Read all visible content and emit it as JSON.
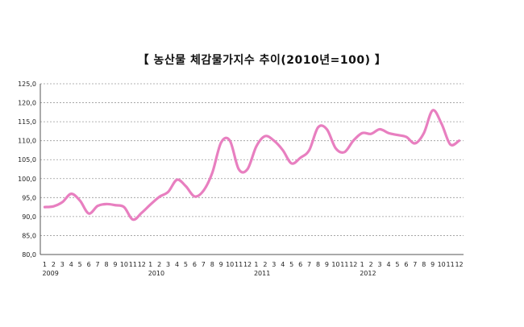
{
  "chart_data": {
    "type": "line",
    "title": "【 농산물 체감물가지수 추이(2010년=100) 】",
    "ylim": [
      80,
      125
    ],
    "yticks": [
      "125,0",
      "120,0",
      "115,0",
      "110,0",
      "105,0",
      "100,0",
      "95,0",
      "90,0",
      "85,0",
      "80,0"
    ],
    "ytick_values": [
      125,
      120,
      115,
      110,
      105,
      100,
      95,
      90,
      85,
      80
    ],
    "month_labels": [
      "1",
      "2",
      "3",
      "4",
      "5",
      "6",
      "7",
      "8",
      "9",
      "10",
      "11",
      "12",
      "1",
      "2",
      "3",
      "4",
      "5",
      "6",
      "7",
      "8",
      "9",
      "10",
      "11",
      "12",
      "1",
      "2",
      "3",
      "4",
      "5",
      "6",
      "7",
      "8",
      "9",
      "10",
      "11",
      "12",
      "1",
      "2",
      "3",
      "4",
      "5",
      "6",
      "7",
      "8",
      "9",
      "10",
      "11",
      "12"
    ],
    "year_labels": [
      "2009",
      "2010",
      "2011",
      "2012"
    ],
    "grid": true,
    "series": [
      {
        "color": "#e87fc0",
        "values": [
          92.5,
          92.7,
          93.8,
          96.0,
          94.2,
          90.8,
          92.8,
          93.3,
          93.0,
          92.5,
          89.2,
          91.0,
          93.2,
          95.2,
          96.5,
          99.7,
          98.0,
          95.3,
          96.8,
          101.5,
          109.5,
          110.0,
          102.5,
          102.5,
          108.5,
          111.2,
          110.0,
          107.5,
          104.0,
          105.5,
          107.5,
          113.5,
          113.0,
          108.0,
          107.0,
          110.0,
          112.0,
          111.8,
          113.0,
          112.0,
          111.5,
          111.0,
          109.3,
          112.0,
          118.0,
          114.5,
          109.0,
          110.0
        ]
      }
    ]
  }
}
